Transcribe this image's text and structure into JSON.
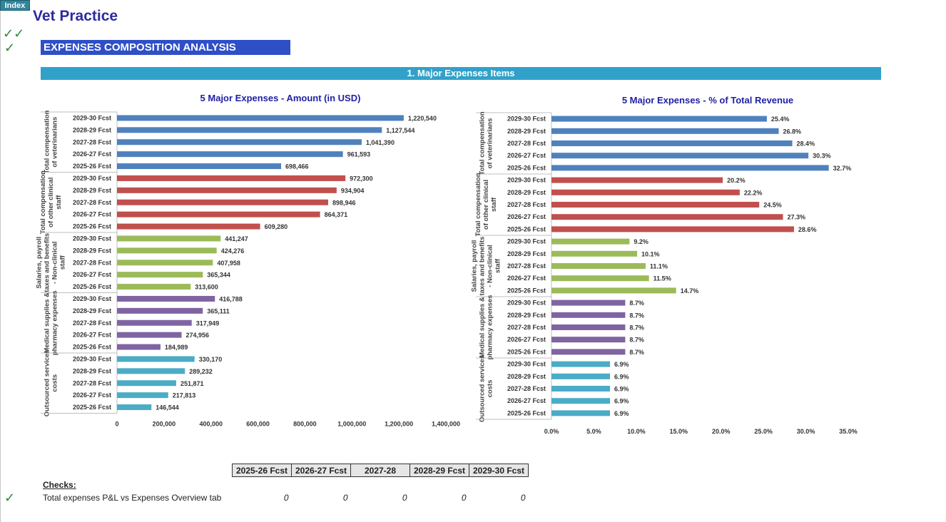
{
  "nav": {
    "index_label": "Index"
  },
  "header": {
    "title": "Vet Practice",
    "check_marks": [
      "✓✓",
      "✓"
    ]
  },
  "section": {
    "title": "EXPENSES COMPOSITION ANALYSIS",
    "subsection": "1. Major Expenses Items"
  },
  "chart_data": [
    {
      "type": "bar",
      "orientation": "horizontal",
      "title": "5 Major Expenses - Amount (in USD)",
      "xlim": [
        0,
        1400000
      ],
      "xticks": [
        0,
        200000,
        400000,
        600000,
        800000,
        1000000,
        1200000,
        1400000
      ],
      "xtick_labels": [
        "0",
        "200,000",
        "400,000",
        "600,000",
        "800,000",
        "1,000,000",
        "1,200,000",
        "1,400,000"
      ],
      "groups": [
        {
          "label": "Total compensation of veterinarians",
          "color": "#4f81bd",
          "categories": [
            "2029-30 Fcst",
            "2028-29 Fcst",
            "2027-28 Fcst",
            "2026-27 Fcst",
            "2025-26 Fcst"
          ],
          "values": [
            1220540,
            1127544,
            1041390,
            961593,
            698466
          ],
          "value_labels": [
            "1,220,540",
            "1,127,544",
            "1,041,390",
            "961,593",
            "698,466"
          ]
        },
        {
          "label": "Total compensation of other clinical staff",
          "color": "#c0504d",
          "categories": [
            "2029-30 Fcst",
            "2028-29 Fcst",
            "2027-28 Fcst",
            "2026-27 Fcst",
            "2025-26 Fcst"
          ],
          "values": [
            972300,
            934904,
            898946,
            864371,
            609280
          ],
          "value_labels": [
            "972,300",
            "934,904",
            "898,946",
            "864,371",
            "609,280"
          ]
        },
        {
          "label": "Salaries, payroll taxes and benefits - Non-clinical staff",
          "color": "#9bbb59",
          "categories": [
            "2029-30 Fcst",
            "2028-29 Fcst",
            "2027-28 Fcst",
            "2026-27 Fcst",
            "2025-26 Fcst"
          ],
          "values": [
            441247,
            424276,
            407958,
            365344,
            313600
          ],
          "value_labels": [
            "441,247",
            "424,276",
            "407,958",
            "365,344",
            "313,600"
          ]
        },
        {
          "label": "Medical supplies & pharmacy expenses",
          "color": "#8064a2",
          "categories": [
            "2029-30 Fcst",
            "2028-29 Fcst",
            "2027-28 Fcst",
            "2026-27 Fcst",
            "2025-26 Fcst"
          ],
          "values": [
            416788,
            365111,
            317949,
            274956,
            184989
          ],
          "value_labels": [
            "416,788",
            "365,111",
            "317,949",
            "274,956",
            "184,989"
          ]
        },
        {
          "label": "Outsourced services costs",
          "color": "#4bacc6",
          "categories": [
            "2029-30 Fcst",
            "2028-29 Fcst",
            "2027-28 Fcst",
            "2026-27 Fcst",
            "2025-26 Fcst"
          ],
          "values": [
            330170,
            289232,
            251871,
            217813,
            146544
          ],
          "value_labels": [
            "330,170",
            "289,232",
            "251,871",
            "217,813",
            "146,544"
          ]
        }
      ]
    },
    {
      "type": "bar",
      "orientation": "horizontal",
      "title": "5 Major Expenses - % of Total Revenue",
      "xlim": [
        0,
        35
      ],
      "xticks": [
        0,
        5,
        10,
        15,
        20,
        25,
        30,
        35
      ],
      "xtick_labels": [
        "0.0%",
        "5.0%",
        "10.0%",
        "15.0%",
        "20.0%",
        "25.0%",
        "30.0%",
        "35.0%"
      ],
      "groups": [
        {
          "label": "Total compensation of veterinarians",
          "color": "#4f81bd",
          "categories": [
            "2029-30 Fcst",
            "2028-29 Fcst",
            "2027-28 Fcst",
            "2026-27 Fcst",
            "2025-26 Fcst"
          ],
          "values": [
            25.4,
            26.8,
            28.4,
            30.3,
            32.7
          ],
          "value_labels": [
            "25.4%",
            "26.8%",
            "28.4%",
            "30.3%",
            "32.7%"
          ]
        },
        {
          "label": "Total compensation of other clinical staff",
          "color": "#c0504d",
          "categories": [
            "2029-30 Fcst",
            "2028-29 Fcst",
            "2027-28 Fcst",
            "2026-27 Fcst",
            "2025-26 Fcst"
          ],
          "values": [
            20.2,
            22.2,
            24.5,
            27.3,
            28.6
          ],
          "value_labels": [
            "20.2%",
            "22.2%",
            "24.5%",
            "27.3%",
            "28.6%"
          ]
        },
        {
          "label": "Salaries, payroll taxes and benefits - Non-clinical staff",
          "color": "#9bbb59",
          "categories": [
            "2029-30 Fcst",
            "2028-29 Fcst",
            "2027-28 Fcst",
            "2026-27 Fcst",
            "2025-26 Fcst"
          ],
          "values": [
            9.2,
            10.1,
            11.1,
            11.5,
            14.7
          ],
          "value_labels": [
            "9.2%",
            "10.1%",
            "11.1%",
            "11.5%",
            "14.7%"
          ]
        },
        {
          "label": "Medical supplies & pharmacy expenses",
          "color": "#8064a2",
          "categories": [
            "2029-30 Fcst",
            "2028-29 Fcst",
            "2027-28 Fcst",
            "2026-27 Fcst",
            "2025-26 Fcst"
          ],
          "values": [
            8.7,
            8.7,
            8.7,
            8.7,
            8.7
          ],
          "value_labels": [
            "8.7%",
            "8.7%",
            "8.7%",
            "8.7%",
            "8.7%"
          ]
        },
        {
          "label": "Outsourced services costs",
          "color": "#4bacc6",
          "categories": [
            "2029-30 Fcst",
            "2028-29 Fcst",
            "2027-28 Fcst",
            "2026-27 Fcst",
            "2025-26 Fcst"
          ],
          "values": [
            6.9,
            6.9,
            6.9,
            6.9,
            6.9
          ],
          "value_labels": [
            "6.9%",
            "6.9%",
            "6.9%",
            "6.9%",
            "6.9%"
          ]
        }
      ]
    }
  ],
  "checks": {
    "label": "Checks:",
    "row_label": "Total expenses P&L vs Expenses Overview tab",
    "check_mark": "✓",
    "columns": [
      "2025-26 Fcst",
      "2026-27 Fcst",
      "2027-28",
      "2028-29 Fcst",
      "2029-30 Fcst"
    ],
    "values": [
      "0",
      "0",
      "0",
      "0",
      "0"
    ]
  }
}
